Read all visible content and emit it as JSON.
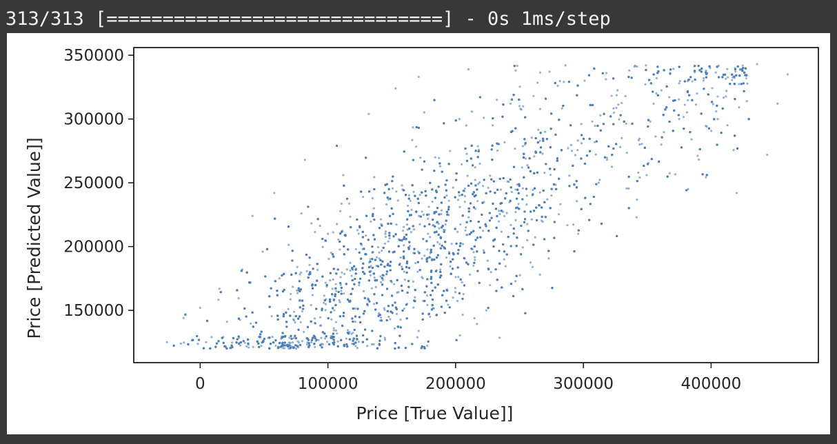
{
  "console": {
    "progress_text": "313/313 [==============================] - 0s 1ms/step"
  },
  "chart_data": {
    "type": "scatter",
    "title": "",
    "xlabel": "Price [True Value]]",
    "ylabel": "Price [Predicted Value]]",
    "xlim": [
      -52000,
      484000
    ],
    "ylim": [
      109000,
      356000
    ],
    "xticks": [
      0,
      100000,
      200000,
      300000,
      400000
    ],
    "yticks": [
      150000,
      200000,
      250000,
      300000,
      350000
    ],
    "xtick_labels": [
      "0",
      "100000",
      "200000",
      "300000",
      "400000"
    ],
    "ytick_labels": [
      "150000",
      "200000",
      "250000",
      "300000",
      "350000"
    ],
    "grid": false,
    "legend": "none",
    "marker_color": "#4c7fb8",
    "marker_alpha": 0.6,
    "series": [
      {
        "description_trend": "positive correlation",
        "points": [
          [
            -26000,
            125000
          ],
          [
            -13000,
            144000
          ],
          [
            0,
            152000
          ],
          [
            9000,
            129000
          ],
          [
            15000,
            167000
          ],
          [
            21000,
            141000
          ],
          [
            33000,
            182000
          ],
          [
            41000,
            224000
          ],
          [
            49000,
            196000
          ],
          [
            58000,
            242000
          ],
          [
            62000,
            175000
          ],
          [
            69000,
            151000
          ],
          [
            76000,
            184000
          ],
          [
            82000,
            268000
          ],
          [
            88000,
            162000
          ],
          [
            94000,
            138000
          ],
          [
            100000,
            210000
          ],
          [
            105000,
            150000
          ],
          [
            110000,
            176000
          ],
          [
            112000,
            256000
          ],
          [
            117000,
            133000
          ],
          [
            122000,
            198000
          ],
          [
            128000,
            165000
          ],
          [
            132000,
            304000
          ],
          [
            136000,
            230000
          ],
          [
            141000,
            142000
          ],
          [
            145000,
            210000
          ],
          [
            150000,
            172000
          ],
          [
            153000,
            324000
          ],
          [
            158000,
            248000
          ],
          [
            162000,
            155000
          ],
          [
            167000,
            195000
          ],
          [
            171000,
            333000
          ],
          [
            175000,
            225000
          ],
          [
            180000,
            145000
          ],
          [
            184000,
            270000
          ],
          [
            188000,
            182000
          ],
          [
            193000,
            240000
          ],
          [
            198000,
            160000
          ],
          [
            203000,
            300000
          ],
          [
            208000,
            215000
          ],
          [
            210000,
            339000
          ],
          [
            214000,
            185000
          ],
          [
            219000,
            265000
          ],
          [
            224000,
            150000
          ],
          [
            229000,
            295000
          ],
          [
            234000,
            228000
          ],
          [
            238000,
            190000
          ],
          [
            243000,
            312000
          ],
          [
            247000,
            338000
          ],
          [
            252000,
            262000
          ],
          [
            256000,
            205000
          ],
          [
            261000,
            318000
          ],
          [
            266000,
            178000
          ],
          [
            270000,
            290000
          ],
          [
            275000,
            240000
          ],
          [
            280000,
            326000
          ],
          [
            286000,
            342000
          ],
          [
            291000,
            275000
          ],
          [
            296000,
            210000
          ],
          [
            301000,
            330000
          ],
          [
            307000,
            298000
          ],
          [
            312000,
            250000
          ],
          [
            318000,
            336000
          ],
          [
            324000,
            305000
          ],
          [
            330000,
            285000
          ],
          [
            336000,
            338000
          ],
          [
            343000,
            258000
          ],
          [
            349000,
            342000
          ],
          [
            355000,
            312000
          ],
          [
            361000,
            280000
          ],
          [
            368000,
            336000
          ],
          [
            375000,
            300000
          ],
          [
            382000,
            245000
          ],
          [
            389000,
            320000
          ],
          [
            396000,
            338000
          ],
          [
            404000,
            306000
          ],
          [
            412000,
            322000
          ],
          [
            420000,
            242000
          ],
          [
            428000,
            314000
          ],
          [
            436000,
            343000
          ],
          [
            444000,
            272000
          ],
          [
            452000,
            312000
          ],
          [
            460000,
            335000
          ]
        ]
      }
    ]
  }
}
